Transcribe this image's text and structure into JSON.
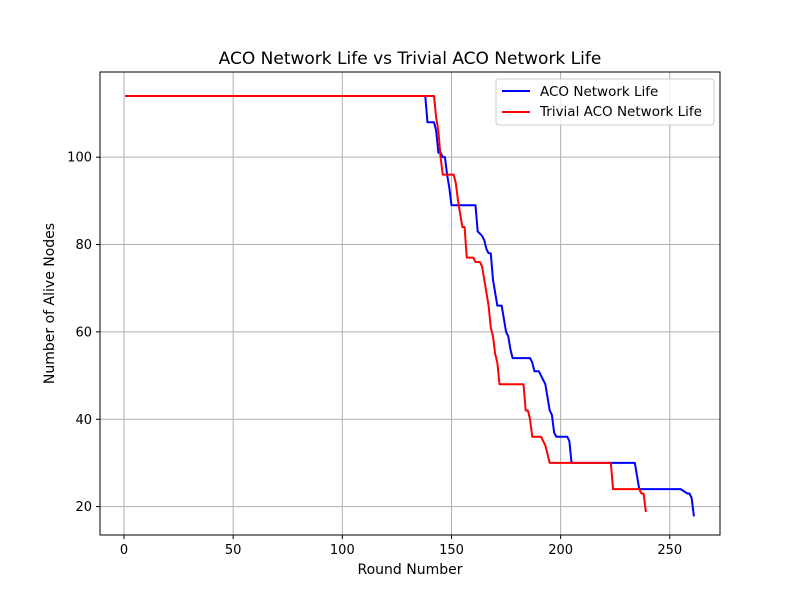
{
  "chart_data": {
    "type": "line",
    "title": "ACO Network Life vs Trivial ACO Network Life",
    "xlabel": "Round Number",
    "ylabel": "Number of Alive Nodes",
    "xlim": [
      -11,
      273
    ],
    "ylim": [
      13.5,
      119.5
    ],
    "xticks": [
      0,
      50,
      100,
      150,
      200,
      250
    ],
    "yticks": [
      20,
      40,
      60,
      80,
      100
    ],
    "grid": true,
    "legend_position": "top-right",
    "series": [
      {
        "name": "ACO Network Life",
        "color": "#0000ff",
        "x": [
          1,
          138,
          139,
          142,
          143,
          144,
          145,
          146,
          147,
          148,
          149,
          150,
          151,
          155,
          160,
          161,
          162,
          164,
          165,
          166,
          167,
          168,
          169,
          170,
          171,
          173,
          174,
          175,
          176,
          177,
          178,
          183,
          186,
          187,
          188,
          190,
          191,
          192,
          193,
          194,
          195,
          196,
          197,
          198,
          202,
          203,
          204,
          205,
          230,
          233,
          234,
          235,
          236,
          250,
          254,
          255,
          258,
          259,
          260,
          261
        ],
        "y": [
          114,
          114,
          108,
          108,
          106,
          101,
          101,
          100,
          100,
          96,
          93,
          89,
          89,
          89,
          89,
          89,
          83,
          82,
          81,
          79,
          78,
          78,
          72,
          69,
          66,
          66,
          63,
          60,
          59,
          56,
          54,
          54,
          54,
          53,
          51,
          51,
          50,
          49,
          48,
          45,
          42,
          41,
          37,
          36,
          36,
          36,
          35,
          30,
          30,
          30,
          30,
          27,
          24,
          24,
          24,
          24,
          23,
          23,
          22,
          18
        ]
      },
      {
        "name": "Trivial ACO Network Life",
        "color": "#ff0000",
        "x": [
          1,
          141,
          142,
          143,
          144,
          145,
          146,
          147,
          150,
          151,
          152,
          153,
          154,
          155,
          156,
          157,
          158,
          160,
          161,
          162,
          163,
          164,
          165,
          166,
          167,
          168,
          169,
          170,
          171,
          172,
          173,
          174,
          183,
          184,
          185,
          186,
          187,
          188,
          191,
          192,
          193,
          194,
          195,
          196,
          197,
          198,
          199,
          205,
          220,
          221,
          222,
          223,
          224,
          235,
          236,
          237,
          238,
          239
        ],
        "y": [
          114,
          114,
          114,
          109,
          106,
          100,
          96,
          96,
          96,
          96,
          94,
          90,
          87,
          84,
          84,
          77,
          77,
          77,
          76,
          76,
          76,
          75,
          72,
          69,
          66,
          61,
          59,
          55,
          53,
          48,
          48,
          48,
          48,
          42,
          42,
          40,
          36,
          36,
          36,
          35,
          34,
          32,
          30,
          30,
          30,
          30,
          30,
          30,
          30,
          30,
          30,
          30,
          24,
          24,
          24,
          23,
          23,
          19
        ]
      }
    ]
  }
}
